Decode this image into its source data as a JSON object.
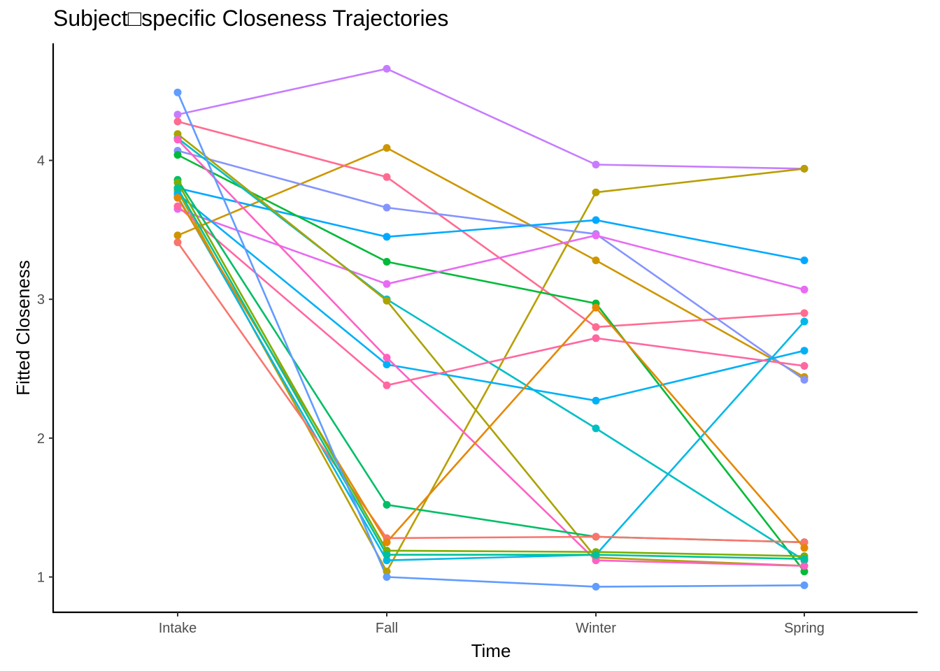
{
  "chart_data": {
    "type": "line",
    "title": "Subject□specific Closeness Trajectories",
    "xlabel": "Time",
    "ylabel": "Fitted Closeness",
    "categories": [
      "Intake",
      "Fall",
      "Winter",
      "Spring"
    ],
    "yticks": [
      1,
      2,
      3,
      4
    ],
    "ylim": [
      0.75,
      4.8
    ],
    "grid": false,
    "legend": "none",
    "series": [
      {
        "color": "#C77CFF",
        "values": [
          4.33,
          4.66,
          3.97,
          3.94
        ]
      },
      {
        "color": "#B79F00",
        "values": [
          3.78,
          1.04,
          3.77,
          3.94
        ]
      },
      {
        "color": "#CD9600",
        "values": [
          3.46,
          4.09,
          3.28,
          2.44
        ]
      },
      {
        "color": "#FF6C91",
        "values": [
          4.28,
          3.88,
          2.8,
          2.9
        ]
      },
      {
        "color": "#8494FF",
        "values": [
          4.07,
          3.66,
          3.47,
          2.42
        ]
      },
      {
        "color": "#00A9FF",
        "values": [
          3.8,
          3.45,
          3.57,
          3.28
        ]
      },
      {
        "color": "#00BA38",
        "values": [
          4.04,
          3.27,
          2.97,
          1.04
        ]
      },
      {
        "color": "#E76BF3",
        "values": [
          3.65,
          3.11,
          3.46,
          3.07
        ]
      },
      {
        "color": "#00BFC4",
        "values": [
          4.16,
          3.0,
          2.07,
          1.12
        ]
      },
      {
        "color": "#ABA300",
        "values": [
          4.19,
          2.99,
          1.14,
          1.08
        ]
      },
      {
        "color": "#00B0F6",
        "values": [
          3.76,
          2.53,
          2.27,
          2.63
        ]
      },
      {
        "color": "#FF61C3",
        "values": [
          4.15,
          2.58,
          1.12,
          1.08
        ]
      },
      {
        "color": "#FF68A1",
        "values": [
          3.67,
          2.38,
          2.72,
          2.52
        ]
      },
      {
        "color": "#00B8E7",
        "values": [
          3.74,
          1.12,
          1.16,
          2.84
        ]
      },
      {
        "color": "#00BE67",
        "values": [
          3.86,
          1.52,
          1.29,
          1.25
        ]
      },
      {
        "color": "#F8766D",
        "values": [
          3.41,
          1.28,
          1.29,
          1.25
        ]
      },
      {
        "color": "#E58700",
        "values": [
          3.73,
          1.25,
          2.94,
          1.21
        ]
      },
      {
        "color": "#7CAE00",
        "values": [
          3.84,
          1.19,
          1.18,
          1.15
        ]
      },
      {
        "color": "#00C19A",
        "values": [
          3.8,
          1.16,
          1.16,
          1.13
        ]
      },
      {
        "color": "#619CFF",
        "values": [
          4.49,
          1.0,
          0.93,
          0.94
        ]
      }
    ]
  }
}
